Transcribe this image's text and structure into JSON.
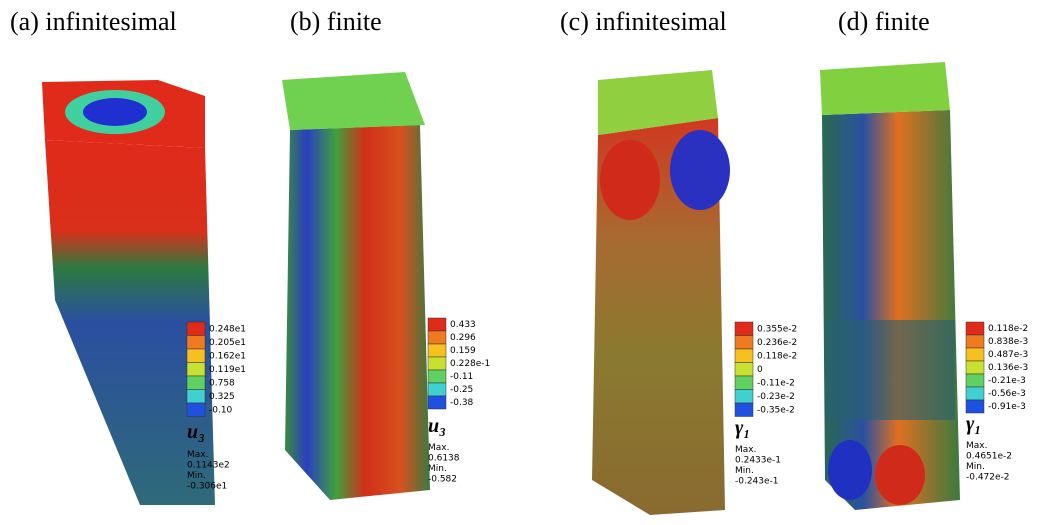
{
  "panels": [
    {
      "label": "(a) infinitesimal",
      "legend": {
        "ticks": [
          "0.248e1",
          "0.205e1",
          "0.162e1",
          "0.119e1",
          "0.758",
          "0.325",
          "-0.10"
        ],
        "variable": "u₃"
      },
      "max_label": "Max.",
      "max_value": "0.1143e2",
      "min_label": "Min.",
      "min_value": "-0.306e1"
    },
    {
      "label": "(b) finite",
      "legend": {
        "ticks": [
          "0.433",
          "0.296",
          "0.159",
          "0.228e-1",
          "-0.11",
          "-0.25",
          "-0.38"
        ],
        "variable": "u₃"
      },
      "max_label": "Max.",
      "max_value": "0.6138",
      "min_label": "Min.",
      "min_value": "-0.582"
    },
    {
      "label": "(c) infinitesimal",
      "legend": {
        "ticks": [
          "0.355e-2",
          "0.236e-2",
          "0.118e-2",
          "0",
          "-0.11e-2",
          "-0.23e-2",
          "-0.35e-2"
        ],
        "variable": "γ₁"
      },
      "max_label": "Max.",
      "max_value": "0.2433e-1",
      "min_label": "Min.",
      "min_value": "-0.243e-1"
    },
    {
      "label": "(d) finite",
      "legend": {
        "ticks": [
          "0.118e-2",
          "0.838e-3",
          "0.487e-3",
          "0.136e-3",
          "-0.21e-3",
          "-0.56e-3",
          "-0.91e-3"
        ],
        "variable": "γ₁"
      },
      "max_label": "Max.",
      "max_value": "0.4651e-2",
      "min_label": "Min.",
      "min_value": "-0.472e-2"
    }
  ]
}
